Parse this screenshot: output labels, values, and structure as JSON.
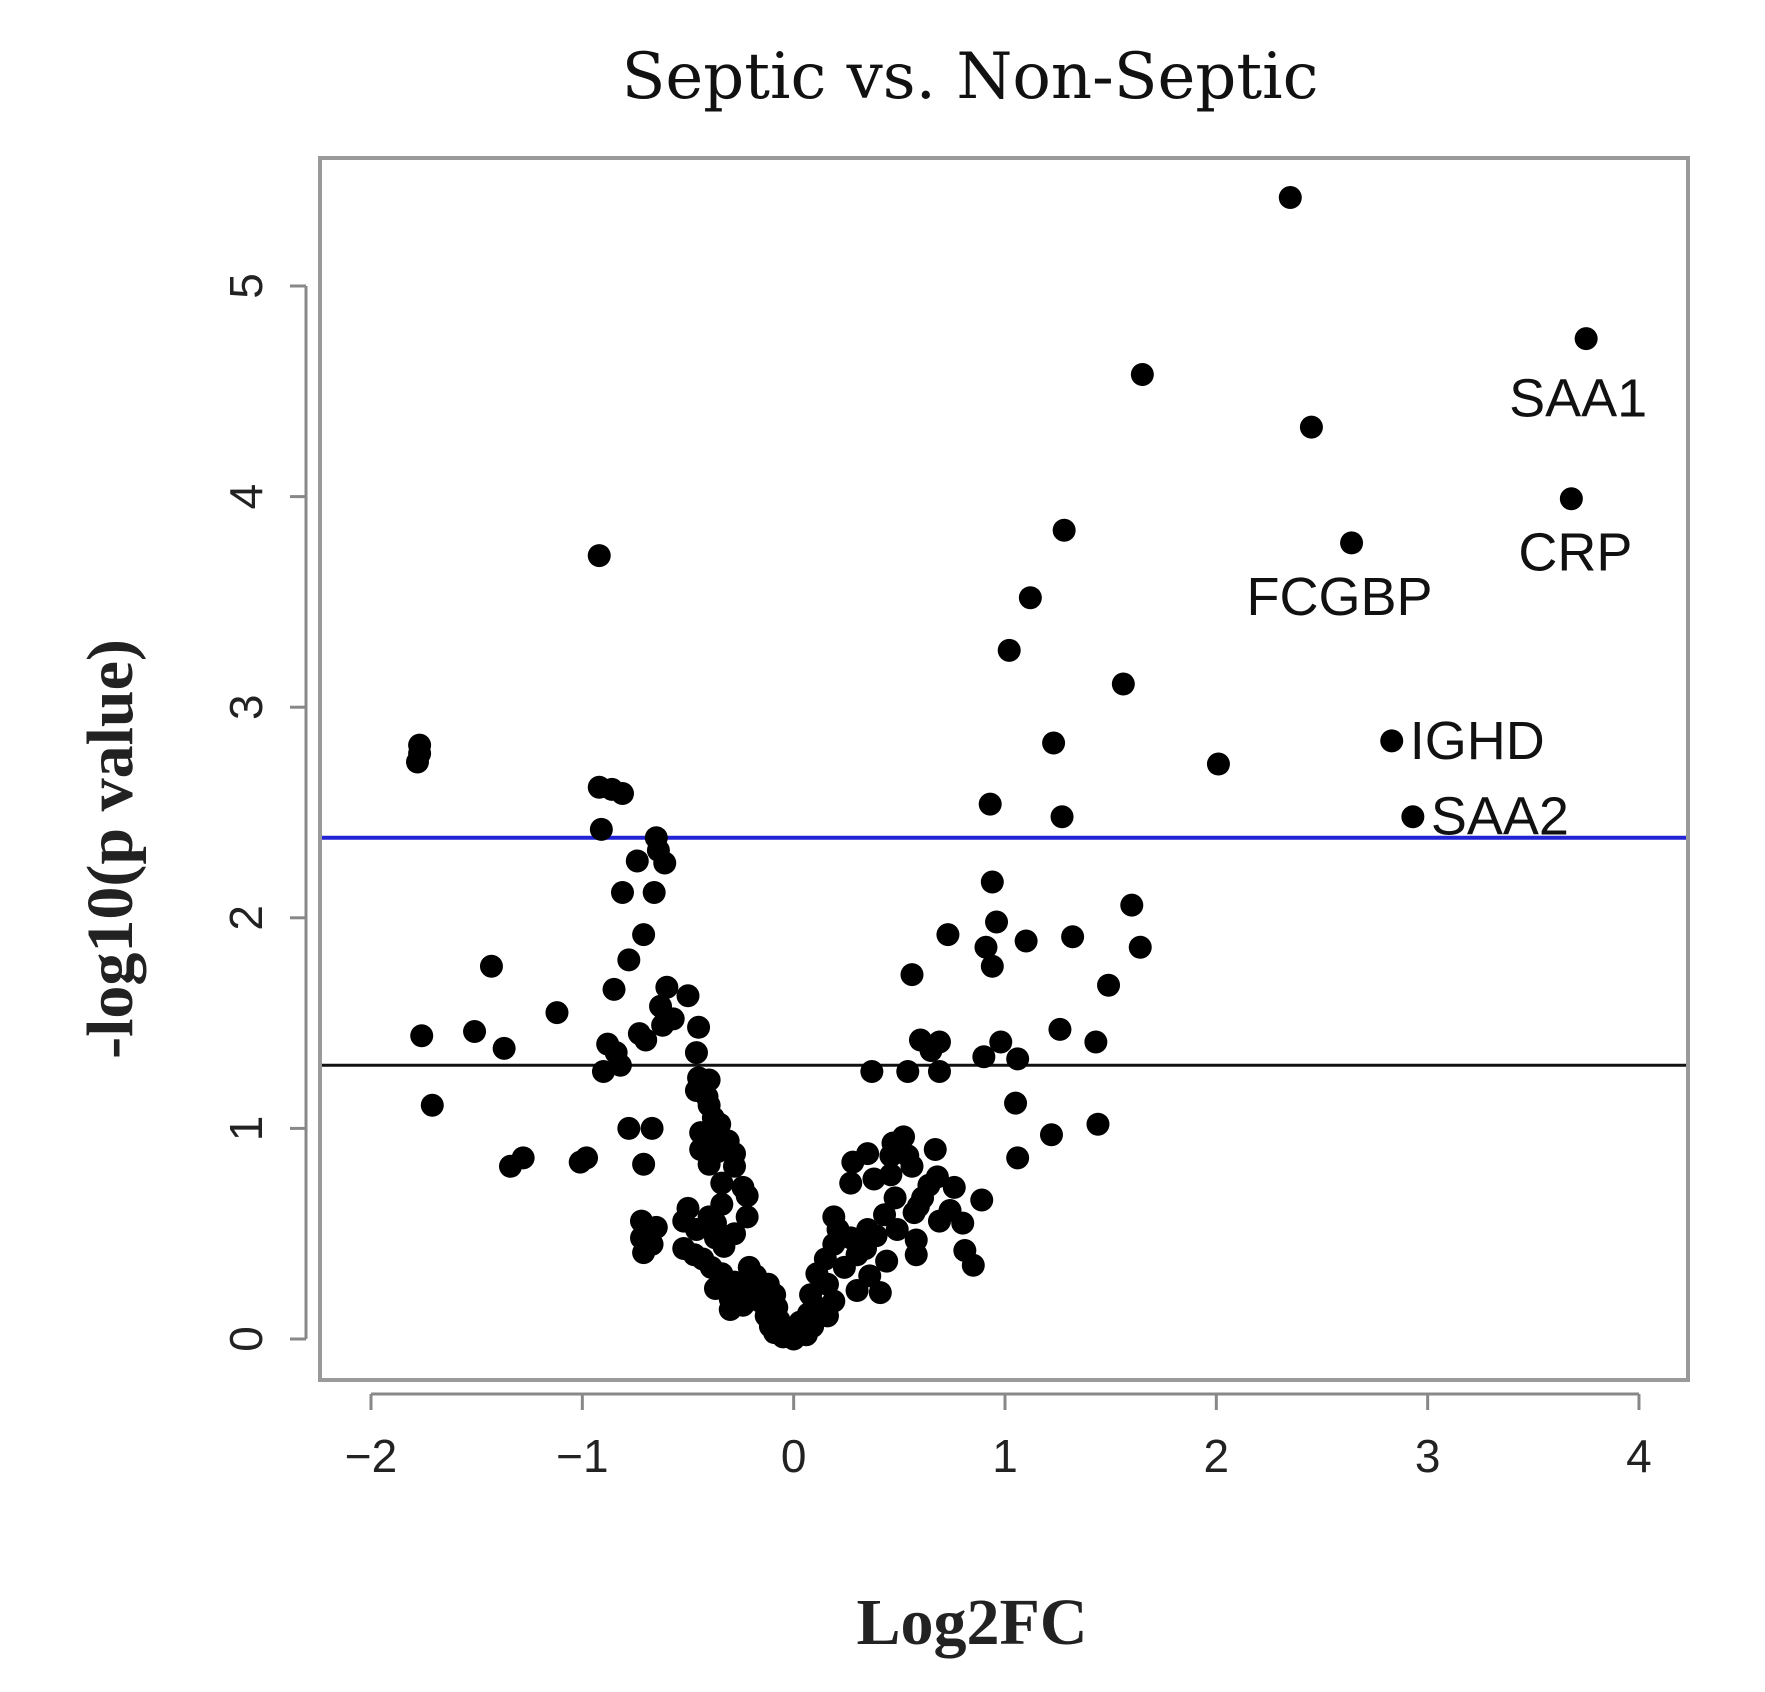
{
  "chart_data": {
    "type": "scatter",
    "title": "Septic vs. Non-Septic",
    "xlabel": "Log2FC",
    "ylabel": "-log10(p value)",
    "xlim": [
      -2.25,
      4.25
    ],
    "ylim": [
      -0.2,
      5.63
    ],
    "x_ticks": [
      -2,
      -1,
      0,
      1,
      2,
      3,
      4
    ],
    "y_ticks": [
      0,
      1,
      2,
      3,
      4,
      5
    ],
    "x_tick_labels": [
      "−2",
      "−1",
      "0",
      "1",
      "2",
      "3",
      "4"
    ],
    "y_tick_labels": [
      "0",
      "1",
      "2",
      "3",
      "4",
      "5"
    ],
    "grid": false,
    "legend": "none",
    "point_color": "#000000",
    "threshold_lines": [
      {
        "y": 2.38,
        "color": "#2323d6"
      },
      {
        "y": 1.3,
        "color": "#111111"
      }
    ],
    "annotations": [
      {
        "text": "SAA1",
        "x": 3.75,
        "y": 4.75
      },
      {
        "text": "CRP",
        "x": 3.68,
        "y": 3.99
      },
      {
        "text": "FCGBP",
        "x": 2.64,
        "y": 3.78
      },
      {
        "text": "IGHD",
        "x": 2.83,
        "y": 2.84
      },
      {
        "text": "SAA2",
        "x": 2.93,
        "y": 2.48
      }
    ],
    "series": [
      {
        "points": [
          [
            2.35,
            5.42
          ],
          [
            3.75,
            4.75
          ],
          [
            1.65,
            4.58
          ],
          [
            2.45,
            4.33
          ],
          [
            3.68,
            3.99
          ],
          [
            1.28,
            3.84
          ],
          [
            2.64,
            3.78
          ],
          [
            -0.92,
            3.72
          ],
          [
            1.12,
            3.52
          ],
          [
            1.02,
            3.27
          ],
          [
            1.56,
            3.11
          ],
          [
            2.83,
            2.84
          ],
          [
            1.23,
            2.83
          ],
          [
            -1.77,
            2.82
          ],
          [
            -1.77,
            2.78
          ],
          [
            -1.78,
            2.74
          ],
          [
            2.01,
            2.73
          ],
          [
            -0.92,
            2.62
          ],
          [
            -0.86,
            2.61
          ],
          [
            -0.81,
            2.59
          ],
          [
            0.93,
            2.54
          ],
          [
            2.93,
            2.48
          ],
          [
            1.27,
            2.48
          ],
          [
            -0.91,
            2.42
          ],
          [
            -0.65,
            2.38
          ],
          [
            -0.64,
            2.32
          ],
          [
            -0.74,
            2.27
          ],
          [
            -0.61,
            2.26
          ],
          [
            0.94,
            2.17
          ],
          [
            -0.81,
            2.12
          ],
          [
            -0.66,
            2.12
          ],
          [
            1.6,
            2.06
          ],
          [
            0.96,
            1.98
          ],
          [
            -0.71,
            1.92
          ],
          [
            0.73,
            1.92
          ],
          [
            1.32,
            1.91
          ],
          [
            1.1,
            1.89
          ],
          [
            0.91,
            1.86
          ],
          [
            1.64,
            1.86
          ],
          [
            -0.78,
            1.8
          ],
          [
            0.94,
            1.77
          ],
          [
            -1.43,
            1.77
          ],
          [
            0.56,
            1.73
          ],
          [
            1.49,
            1.68
          ],
          [
            -0.85,
            1.66
          ],
          [
            -0.6,
            1.67
          ],
          [
            -0.5,
            1.63
          ],
          [
            -0.63,
            1.58
          ],
          [
            -1.12,
            1.55
          ],
          [
            -0.57,
            1.52
          ],
          [
            -0.62,
            1.49
          ],
          [
            -0.45,
            1.48
          ],
          [
            1.26,
            1.47
          ],
          [
            -1.76,
            1.44
          ],
          [
            -1.51,
            1.46
          ],
          [
            -0.73,
            1.45
          ],
          [
            -0.88,
            1.4
          ],
          [
            -0.7,
            1.42
          ],
          [
            0.6,
            1.42
          ],
          [
            0.69,
            1.41
          ],
          [
            1.43,
            1.41
          ],
          [
            0.98,
            1.41
          ],
          [
            -1.37,
            1.38
          ],
          [
            -0.84,
            1.36
          ],
          [
            -0.46,
            1.36
          ],
          [
            0.65,
            1.37
          ],
          [
            0.9,
            1.34
          ],
          [
            1.06,
            1.33
          ],
          [
            -0.82,
            1.3
          ],
          [
            -0.9,
            1.27
          ],
          [
            0.37,
            1.27
          ],
          [
            0.54,
            1.27
          ],
          [
            0.69,
            1.27
          ],
          [
            -0.45,
            1.24
          ],
          [
            -0.4,
            1.23
          ],
          [
            -0.46,
            1.18
          ],
          [
            -0.41,
            1.15
          ],
          [
            -0.4,
            1.11
          ],
          [
            -1.71,
            1.11
          ],
          [
            1.05,
            1.12
          ],
          [
            -0.38,
            1.05
          ],
          [
            -0.35,
            1.02
          ],
          [
            -0.78,
            1.0
          ],
          [
            -0.67,
            1.0
          ],
          [
            1.44,
            1.02
          ],
          [
            -0.44,
            0.98
          ],
          [
            -0.4,
            0.96
          ],
          [
            -0.31,
            0.94
          ],
          [
            0.52,
            0.96
          ],
          [
            0.47,
            0.93
          ],
          [
            1.22,
            0.97
          ],
          [
            -0.44,
            0.9
          ],
          [
            -0.36,
            0.89
          ],
          [
            -0.28,
            0.88
          ],
          [
            0.35,
            0.88
          ],
          [
            0.46,
            0.87
          ],
          [
            0.54,
            0.87
          ],
          [
            0.67,
            0.9
          ],
          [
            -0.98,
            0.86
          ],
          [
            1.06,
            0.86
          ],
          [
            -1.28,
            0.86
          ],
          [
            -1.01,
            0.84
          ],
          [
            -1.34,
            0.82
          ],
          [
            -0.71,
            0.83
          ],
          [
            -0.4,
            0.83
          ],
          [
            -0.28,
            0.82
          ],
          [
            0.28,
            0.84
          ],
          [
            0.56,
            0.82
          ],
          [
            0.46,
            0.78
          ],
          [
            0.38,
            0.76
          ],
          [
            0.68,
            0.77
          ],
          [
            -0.34,
            0.74
          ],
          [
            -0.24,
            0.72
          ],
          [
            0.27,
            0.74
          ],
          [
            0.64,
            0.73
          ],
          [
            0.76,
            0.72
          ],
          [
            -0.22,
            0.68
          ],
          [
            0.48,
            0.67
          ],
          [
            0.61,
            0.67
          ],
          [
            0.89,
            0.66
          ],
          [
            -0.34,
            0.64
          ],
          [
            -0.5,
            0.62
          ],
          [
            0.59,
            0.63
          ],
          [
            0.74,
            0.61
          ],
          [
            -0.4,
            0.58
          ],
          [
            -0.22,
            0.58
          ],
          [
            0.19,
            0.58
          ],
          [
            0.43,
            0.59
          ],
          [
            0.57,
            0.6
          ],
          [
            -0.72,
            0.56
          ],
          [
            -0.52,
            0.56
          ],
          [
            -0.37,
            0.55
          ],
          [
            0.69,
            0.56
          ],
          [
            0.8,
            0.55
          ],
          [
            -0.65,
            0.53
          ],
          [
            -0.46,
            0.52
          ],
          [
            0.21,
            0.52
          ],
          [
            0.35,
            0.52
          ],
          [
            0.49,
            0.52
          ],
          [
            -0.28,
            0.5
          ],
          [
            -0.72,
            0.48
          ],
          [
            -0.37,
            0.48
          ],
          [
            0.27,
            0.48
          ],
          [
            0.39,
            0.49
          ],
          [
            0.58,
            0.47
          ],
          [
            -0.67,
            0.45
          ],
          [
            -0.52,
            0.43
          ],
          [
            -0.33,
            0.44
          ],
          [
            0.19,
            0.45
          ],
          [
            0.34,
            0.43
          ],
          [
            -0.71,
            0.41
          ],
          [
            -0.47,
            0.4
          ],
          [
            0.3,
            0.4
          ],
          [
            0.58,
            0.4
          ],
          [
            0.81,
            0.42
          ],
          [
            -0.43,
            0.38
          ],
          [
            0.15,
            0.38
          ],
          [
            0.44,
            0.37
          ],
          [
            0.85,
            0.35
          ],
          [
            -0.39,
            0.34
          ],
          [
            -0.21,
            0.34
          ],
          [
            0.24,
            0.34
          ],
          [
            -0.34,
            0.31
          ],
          [
            -0.18,
            0.3
          ],
          [
            0.11,
            0.31
          ],
          [
            0.36,
            0.3
          ],
          [
            -0.28,
            0.27
          ],
          [
            -0.12,
            0.26
          ],
          [
            0.16,
            0.26
          ],
          [
            -0.37,
            0.24
          ],
          [
            -0.21,
            0.23
          ],
          [
            0.3,
            0.23
          ],
          [
            0.41,
            0.22
          ],
          [
            -0.09,
            0.21
          ],
          [
            0.08,
            0.21
          ],
          [
            -0.3,
            0.19
          ],
          [
            -0.16,
            0.18
          ],
          [
            0.19,
            0.18
          ],
          [
            -0.24,
            0.16
          ],
          [
            -0.08,
            0.15
          ],
          [
            0.11,
            0.15
          ],
          [
            -0.3,
            0.14
          ],
          [
            0.07,
            0.12
          ],
          [
            -0.13,
            0.11
          ],
          [
            0.16,
            0.11
          ],
          [
            -0.07,
            0.09
          ],
          [
            0.03,
            0.08
          ],
          [
            -0.11,
            0.06
          ],
          [
            0.09,
            0.06
          ],
          [
            -0.04,
            0.05
          ],
          [
            0.04,
            0.04
          ],
          [
            -0.09,
            0.03
          ],
          [
            -0.02,
            0.02
          ],
          [
            0.01,
            0.01
          ],
          [
            -0.05,
            0.01
          ],
          [
            0.06,
            0.02
          ],
          [
            0.0,
            0.0
          ]
        ]
      }
    ]
  }
}
